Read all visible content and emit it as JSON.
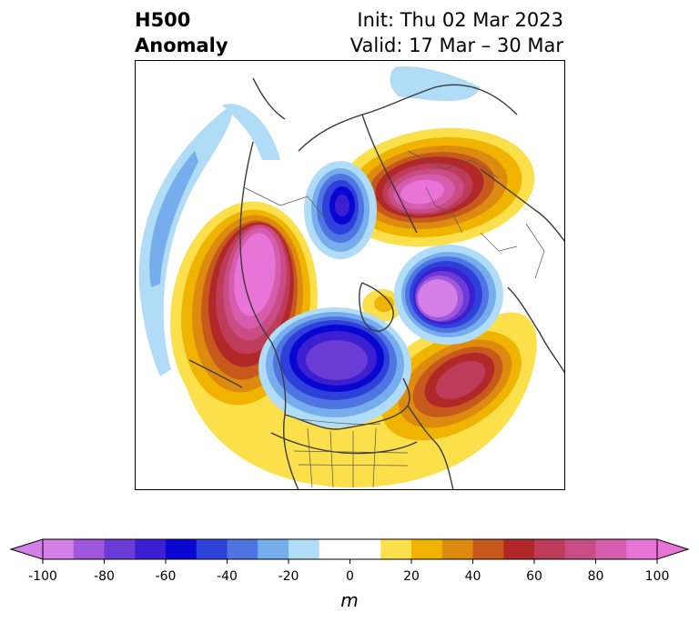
{
  "title": {
    "left_line1": "H500",
    "left_line2": "Anomaly",
    "right_line1": "Init: Thu 02 Mar 2023",
    "right_line2": "Valid: 17 Mar – 30 Mar"
  },
  "colorbar": {
    "unit": "m",
    "min": -100,
    "max": 100,
    "step": 10,
    "ticks": [
      "-100",
      "-80",
      "-60",
      "-40",
      "-20",
      "0",
      "20",
      "40",
      "60",
      "80",
      "100"
    ],
    "colors": [
      "#d47ee8",
      "#9f57dd",
      "#6b3bd6",
      "#3b1fd1",
      "#0a06d1",
      "#2d40da",
      "#4f75e3",
      "#76aeed",
      "#b0dcf8",
      "#ffffff",
      "#ffffff",
      "#fbe04c",
      "#f0b400",
      "#dd8a10",
      "#c65a1c",
      "#b22828",
      "#bc3c5a",
      "#c94c84",
      "#d65cae",
      "#e874d8"
    ],
    "extend_low_color": "#d47ee8",
    "extend_high_color": "#e874d8"
  },
  "map": {
    "projection": "north-polar stereographic",
    "features": [
      "Heights anomaly contours",
      "coastlines",
      "national borders",
      "state/province borders"
    ]
  }
}
